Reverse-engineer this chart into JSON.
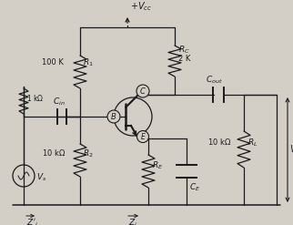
{
  "bg_color": "#d3cfc7",
  "line_color": "#1a1a1a",
  "text_color": "#1a1a1a",
  "vcc_label": "+V_{cc}",
  "r1_val": "100 K",
  "r1_label": "R_1",
  "rc_val": "2 K",
  "rc_label": "R_C",
  "r2_val": "10 kΩ",
  "r2_label": "R_2",
  "re_label": "R_E",
  "rl_val": "10 kΩ",
  "rl_label": "R_L",
  "cin_label": "C_{in}",
  "cout_label": "C_{out}",
  "ce_label": "C_E",
  "rs_val": "1 kΩ",
  "vs_label": "V_s",
  "vout_label": "V_{out}",
  "zi_prime_label": "Z'_i",
  "zi_label": "Z_i",
  "B_label": "B",
  "C_label": "C",
  "E_label": "E"
}
